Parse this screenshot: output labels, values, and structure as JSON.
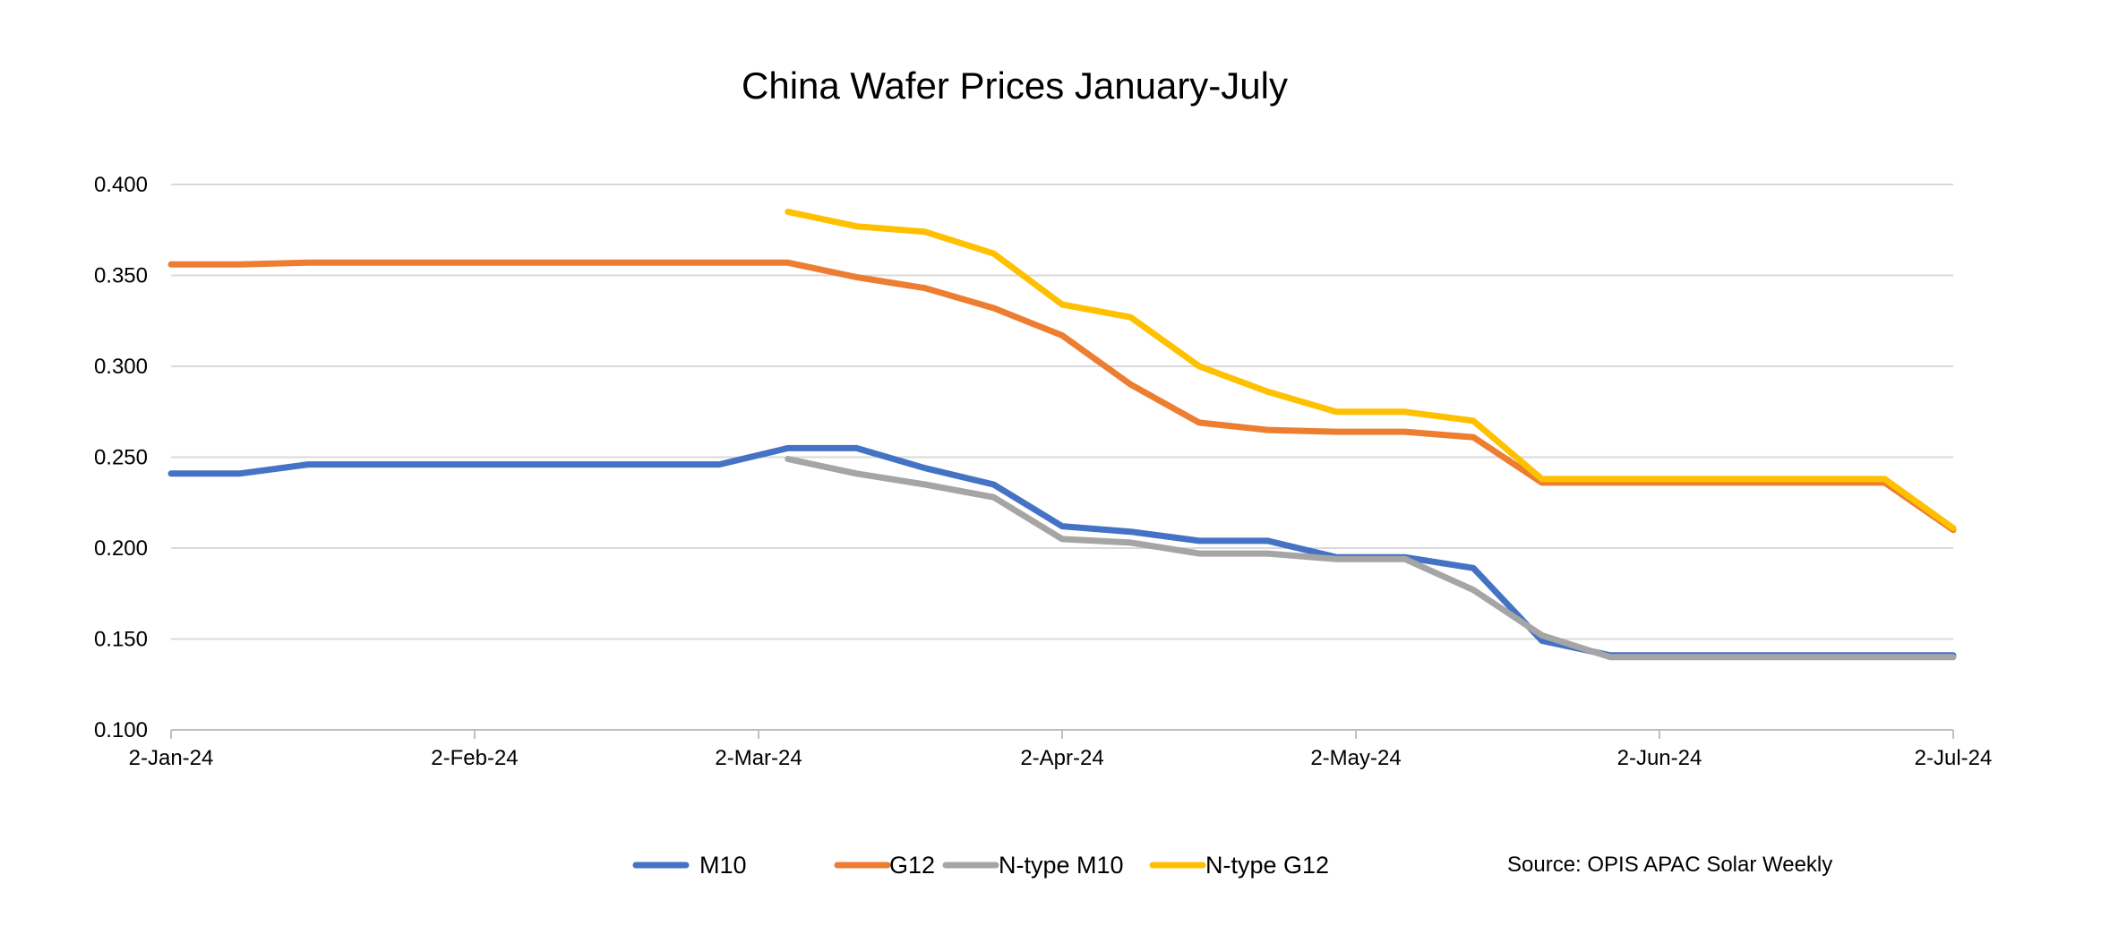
{
  "chart_data": {
    "type": "line",
    "title": "China Wafer Prices January-July",
    "xlabel": "",
    "ylabel": "",
    "ylim": [
      0.1,
      0.4
    ],
    "yticks": [
      "0.100",
      "0.150",
      "0.200",
      "0.250",
      "0.300",
      "0.350",
      "0.400"
    ],
    "xlim": [
      "2024-01-02",
      "2024-07-02"
    ],
    "xticks": [
      {
        "date": "2024-01-02",
        "label": "2-Jan-24"
      },
      {
        "date": "2024-02-02",
        "label": "2-Feb-24"
      },
      {
        "date": "2024-03-02",
        "label": "2-Mar-24"
      },
      {
        "date": "2024-04-02",
        "label": "2-Apr-24"
      },
      {
        "date": "2024-05-02",
        "label": "2-May-24"
      },
      {
        "date": "2024-06-02",
        "label": "2-Jun-24"
      },
      {
        "date": "2024-07-02",
        "label": "2-Jul-24"
      }
    ],
    "grid": "horizontal",
    "legend_placement": "bottom",
    "x": [
      "2024-01-02",
      "2024-01-09",
      "2024-01-16",
      "2024-01-23",
      "2024-01-30",
      "2024-02-06",
      "2024-02-13",
      "2024-02-20",
      "2024-02-27",
      "2024-03-05",
      "2024-03-12",
      "2024-03-19",
      "2024-03-26",
      "2024-04-02",
      "2024-04-09",
      "2024-04-16",
      "2024-04-23",
      "2024-04-30",
      "2024-05-07",
      "2024-05-14",
      "2024-05-21",
      "2024-05-28",
      "2024-06-04",
      "2024-06-11",
      "2024-06-18",
      "2024-06-25",
      "2024-07-02"
    ],
    "series": [
      {
        "name": "M10",
        "color": "#4472C4",
        "values": [
          0.241,
          0.241,
          0.246,
          0.246,
          0.246,
          0.246,
          0.246,
          0.246,
          0.246,
          0.255,
          0.255,
          0.244,
          0.235,
          0.212,
          0.209,
          0.204,
          0.204,
          0.195,
          0.195,
          0.189,
          0.149,
          0.141,
          0.141,
          0.141,
          0.141,
          0.141,
          0.141
        ]
      },
      {
        "name": "G12",
        "color": "#ED7D31",
        "values": [
          0.356,
          0.356,
          0.357,
          0.357,
          0.357,
          0.357,
          0.357,
          0.357,
          0.357,
          0.357,
          0.349,
          0.343,
          0.332,
          0.317,
          0.29,
          0.269,
          0.265,
          0.264,
          0.264,
          0.261,
          0.236,
          0.236,
          0.236,
          0.236,
          0.236,
          0.236,
          0.21
        ]
      },
      {
        "name": "N-type M10",
        "color": "#A5A5A5",
        "values": [
          null,
          null,
          null,
          null,
          null,
          null,
          null,
          null,
          null,
          0.249,
          0.241,
          0.235,
          0.228,
          0.205,
          0.203,
          0.197,
          0.197,
          0.194,
          0.194,
          0.177,
          0.152,
          0.14,
          0.14,
          0.14,
          0.14,
          0.14,
          0.14
        ]
      },
      {
        "name": "N-type G12",
        "color": "#FFC000",
        "values": [
          null,
          null,
          null,
          null,
          null,
          null,
          null,
          null,
          null,
          0.385,
          0.377,
          0.374,
          0.362,
          0.334,
          0.327,
          0.3,
          0.286,
          0.275,
          0.275,
          0.27,
          0.238,
          0.238,
          0.238,
          0.238,
          0.238,
          0.238,
          0.211
        ]
      }
    ],
    "annotation": "Source: OPIS APAC Solar Weekly"
  }
}
